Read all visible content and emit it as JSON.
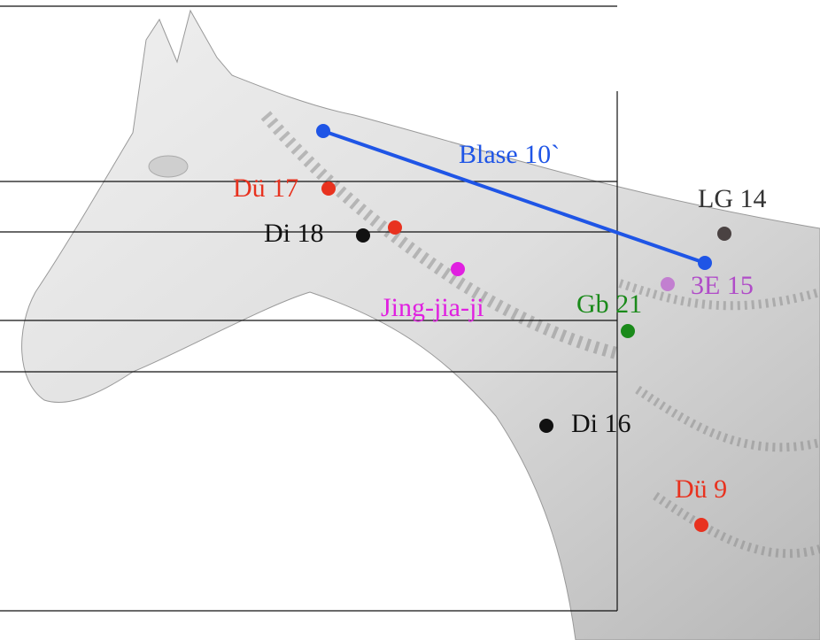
{
  "points": [
    {
      "label": "Blase 10`"
    },
    {
      "label": "Dü 17"
    },
    {
      "label": "Di 18"
    },
    {
      "label": "LG 14"
    },
    {
      "label": "3E 15"
    },
    {
      "label": "Jing-jia-ji"
    },
    {
      "label": "Gb 21"
    },
    {
      "label": "Di 16"
    },
    {
      "label": "Dü 9"
    }
  ]
}
